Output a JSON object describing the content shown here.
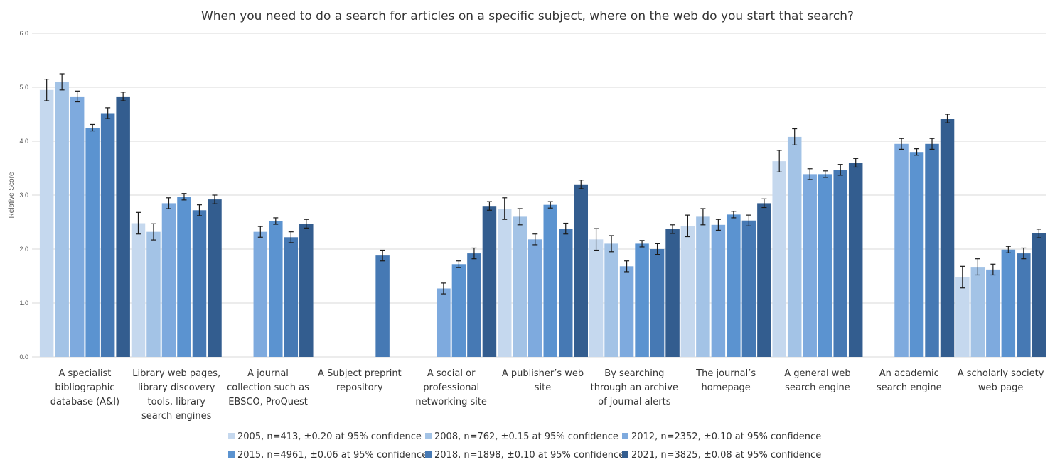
{
  "chart_data": {
    "type": "bar",
    "title": "When you need to do a search for articles on a specific subject, where on the web do you start that search?",
    "ylabel": "Relative Score",
    "xlabel": "",
    "ylim": [
      0,
      6
    ],
    "yticks": [
      "0.0",
      "1.0",
      "2.0",
      "3.0",
      "4.0",
      "5.0",
      "6.0"
    ],
    "grid": true,
    "legend_position": "bottom",
    "categories": [
      [
        "A specialist",
        "bibliographic",
        "database (A&I)"
      ],
      [
        "Library web pages,",
        "library discovery",
        "tools, library",
        "search engines"
      ],
      [
        "A journal",
        "collection such as",
        "EBSCO, ProQuest"
      ],
      [
        "A Subject preprint",
        "repository"
      ],
      [
        "A social or",
        "professional",
        "networking site"
      ],
      [
        "A publisher’s web",
        "site"
      ],
      [
        "By searching",
        "through an archive",
        "of journal alerts"
      ],
      [
        "The journal’s",
        "homepage"
      ],
      [
        "A general web",
        "search engine"
      ],
      [
        "An academic",
        "search engine"
      ],
      [
        "A scholarly society",
        "web page"
      ]
    ],
    "series": [
      {
        "name": "2005, n=413,  ±0.20 at 95% confidence",
        "color": "#c5d8ee",
        "error": 0.2,
        "values": [
          4.95,
          2.48,
          null,
          null,
          null,
          2.75,
          2.18,
          2.43,
          3.63,
          null,
          1.48
        ]
      },
      {
        "name": "2008, n=762,  ±0.15 at 95% confidence",
        "color": "#a3c3e6",
        "error": 0.15,
        "values": [
          5.1,
          2.32,
          null,
          null,
          null,
          2.6,
          2.1,
          2.6,
          4.08,
          null,
          1.67
        ]
      },
      {
        "name": "2012, n=2352, ±0.10 at 95% confidence",
        "color": "#7eaade",
        "error": 0.1,
        "values": [
          4.83,
          2.85,
          2.32,
          null,
          1.27,
          2.18,
          1.68,
          2.45,
          3.39,
          3.95,
          1.62
        ]
      },
      {
        "name": "2015, n=4961, ±0.06 at 95% confidence",
        "color": "#5b93d0",
        "error": 0.06,
        "values": [
          4.25,
          2.97,
          2.52,
          null,
          1.72,
          2.82,
          2.1,
          2.64,
          3.39,
          3.8,
          1.99
        ]
      },
      {
        "name": "2018, n=1898, ±0.10 at 95% confidence",
        "color": "#4679b4",
        "error": 0.1,
        "values": [
          4.52,
          2.72,
          2.22,
          1.88,
          1.92,
          2.38,
          2.0,
          2.53,
          3.47,
          3.95,
          1.92
        ]
      },
      {
        "name": "2021, n=3825, ±0.08 at 95% confidence",
        "color": "#335d8f",
        "error": 0.08,
        "values": [
          4.83,
          2.92,
          2.47,
          null,
          2.8,
          3.2,
          2.37,
          2.85,
          3.6,
          4.42,
          2.29
        ]
      }
    ]
  }
}
